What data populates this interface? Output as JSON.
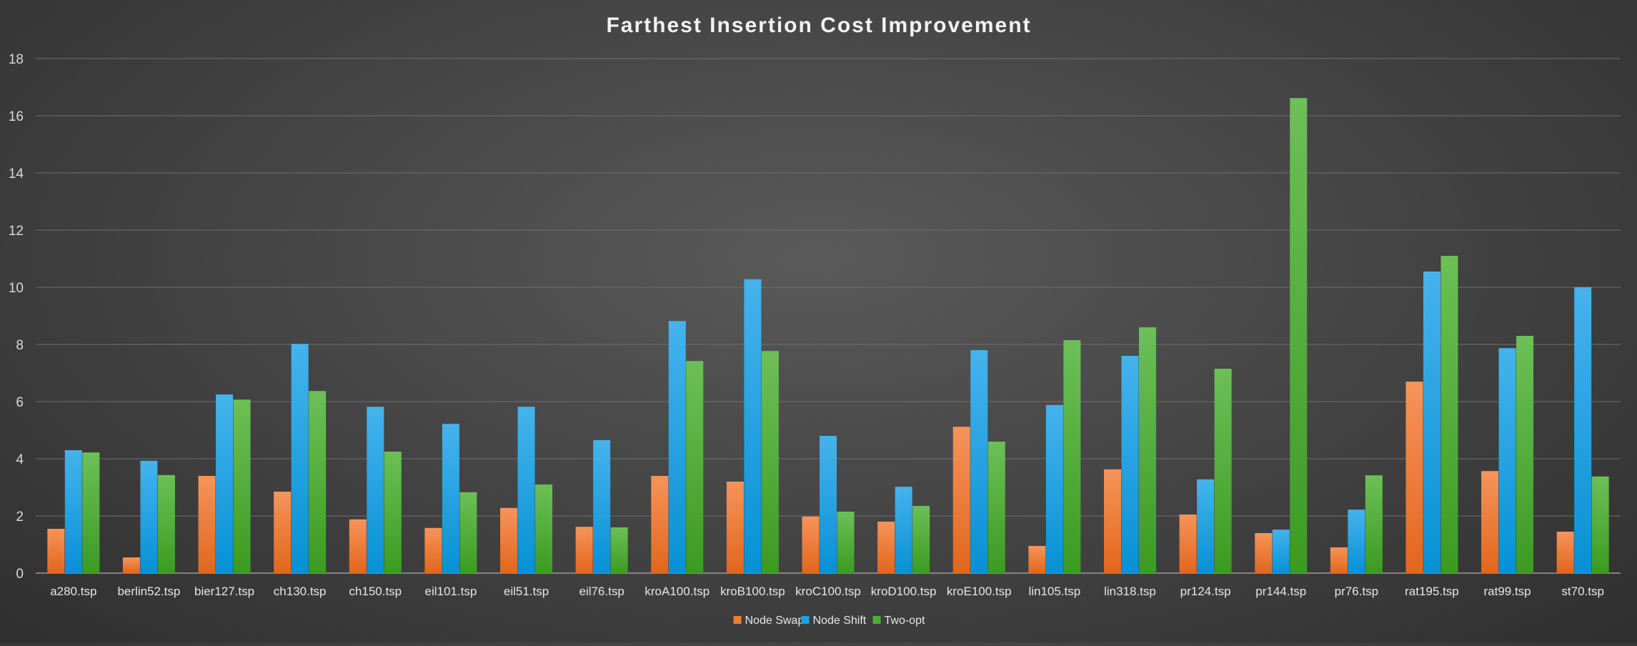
{
  "chart_data": {
    "type": "bar",
    "title": "Farthest Insertion Cost Improvement",
    "xlabel": "",
    "ylabel": "",
    "ylim": [
      0,
      18
    ],
    "yticks": [
      0,
      2,
      4,
      6,
      8,
      10,
      12,
      14,
      16,
      18
    ],
    "grid": true,
    "legend_position": "bottom",
    "categories": [
      "a280.tsp",
      "berlin52.tsp",
      "bier127.tsp",
      "ch130.tsp",
      "ch150.tsp",
      "eil101.tsp",
      "eil51.tsp",
      "eil76.tsp",
      "kroA100.tsp",
      "kroB100.tsp",
      "kroC100.tsp",
      "kroD100.tsp",
      "kroE100.tsp",
      "lin105.tsp",
      "lin318.tsp",
      "pr124.tsp",
      "pr144.tsp",
      "pr76.tsp",
      "rat195.tsp",
      "rat99.tsp",
      "st70.tsp"
    ],
    "series": [
      {
        "name": "Node Swap",
        "color": "#ed7d31",
        "values": [
          1.55,
          0.55,
          3.4,
          2.85,
          1.88,
          1.58,
          2.28,
          1.62,
          3.4,
          3.2,
          1.98,
          1.8,
          5.12,
          0.95,
          3.63,
          2.05,
          1.4,
          0.9,
          6.7,
          3.57,
          1.45
        ]
      },
      {
        "name": "Node Shift",
        "color": "#1ea0e6",
        "values": [
          4.3,
          3.93,
          6.25,
          8.02,
          5.82,
          5.22,
          5.82,
          4.65,
          8.82,
          10.28,
          4.8,
          3.02,
          7.8,
          5.88,
          7.6,
          3.28,
          1.52,
          2.22,
          10.55,
          7.87,
          10.0
        ]
      },
      {
        "name": "Two-opt",
        "color": "#4cae33",
        "values": [
          4.22,
          3.43,
          6.07,
          6.37,
          4.25,
          2.83,
          3.1,
          1.6,
          7.42,
          7.77,
          2.15,
          2.35,
          4.6,
          8.15,
          8.6,
          7.15,
          16.62,
          3.42,
          11.1,
          8.3,
          3.38
        ]
      }
    ]
  }
}
